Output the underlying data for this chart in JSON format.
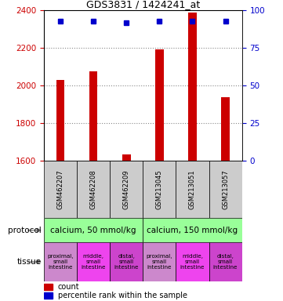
{
  "title": "GDS3831 / 1424241_at",
  "samples": [
    "GSM462207",
    "GSM462208",
    "GSM462209",
    "GSM213045",
    "GSM213051",
    "GSM213057"
  ],
  "bar_values": [
    2030,
    2075,
    1635,
    2195,
    2390,
    1940
  ],
  "percentile_values": [
    93,
    93,
    92,
    93,
    93,
    93
  ],
  "ylim_left": [
    1600,
    2400
  ],
  "ylim_right": [
    0,
    100
  ],
  "yticks_left": [
    1600,
    1800,
    2000,
    2200,
    2400
  ],
  "yticks_right": [
    0,
    25,
    50,
    75,
    100
  ],
  "bar_color": "#cc0000",
  "dot_color": "#0000cc",
  "protocol_labels": [
    "calcium, 50 mmol/kg",
    "calcium, 150 mmol/kg"
  ],
  "protocol_color": "#99ff99",
  "tissue_labels": [
    "proximal,\nsmall\nintestine",
    "middle,\nsmall\nintestine",
    "distal,\nsmall\nintestine",
    "proximal,\nsmall\nintestine",
    "middle,\nsmall\nintestine",
    "distal,\nsmall\nintestine"
  ],
  "tissue_colors": [
    "#dd99dd",
    "#ee55ee",
    "#dd99dd",
    "#dd99dd",
    "#ee55ee",
    "#dd99dd"
  ],
  "grid_color": "#888888",
  "sample_box_color": "#cccccc",
  "label_color_left": "#cc0000",
  "label_color_right": "#0000cc",
  "bar_width": 0.25
}
